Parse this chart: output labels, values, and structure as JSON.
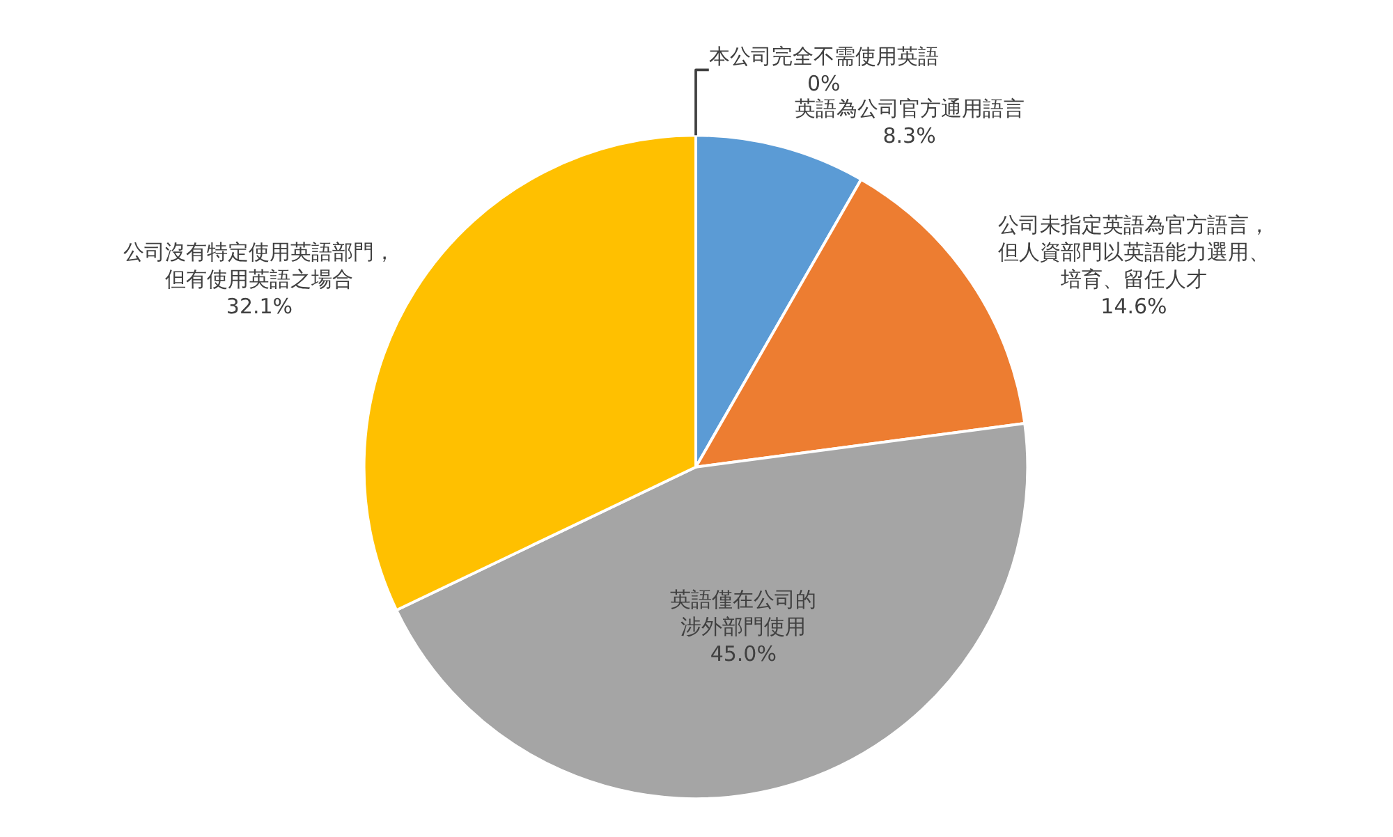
{
  "chart_data": {
    "type": "pie",
    "categories": [
      "英語為公司官方通用語言",
      "公司未指定英語為官方語言，但人資部門以英語能力選用、培育、留任人才",
      "英語僅在公司的涉外部門使用",
      "公司沒有特定使用英語部門，但有使用英語之場合",
      "本公司完全不需使用英語"
    ],
    "values": [
      8.3,
      14.6,
      45.0,
      32.1,
      0
    ],
    "value_labels": [
      "8.3%",
      "14.6%",
      "45.0%",
      "32.1%",
      "0%"
    ],
    "colors": [
      "#5b9bd5",
      "#ed7d31",
      "#a5a5a5",
      "#ffc000",
      "#4472c4"
    ],
    "legend": false
  }
}
